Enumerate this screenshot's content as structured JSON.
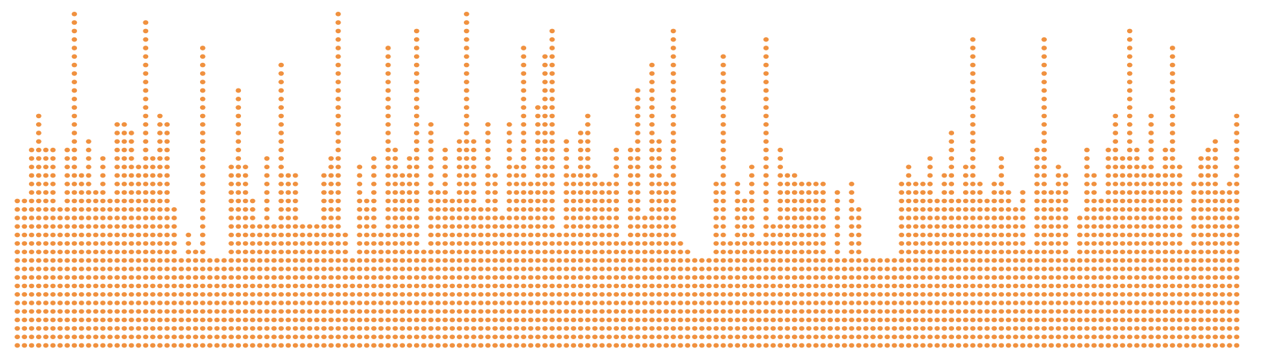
{
  "chart_data": {
    "type": "bar",
    "style": "dot-stack",
    "dot_color": "#f0913f",
    "background_color": "#ffffff",
    "values": [
      18,
      18,
      24,
      28,
      24,
      24,
      17,
      24,
      40,
      21,
      25,
      19,
      23,
      18,
      27,
      27,
      26,
      22,
      39,
      23,
      28,
      27,
      17,
      11,
      14,
      12,
      36,
      11,
      11,
      11,
      22,
      31,
      22,
      18,
      15,
      23,
      15,
      34,
      21,
      21,
      15,
      15,
      15,
      21,
      23,
      40,
      14,
      11,
      22,
      18,
      23,
      14,
      36,
      24,
      21,
      23,
      38,
      12,
      27,
      19,
      24,
      18,
      25,
      40,
      25,
      17,
      27,
      21,
      16,
      27,
      22,
      36,
      20,
      29,
      35,
      38,
      14,
      25,
      21,
      26,
      28,
      21,
      20,
      20,
      24,
      13,
      24,
      31,
      16,
      34,
      25,
      20,
      38,
      13,
      12,
      11,
      11,
      11,
      20,
      35,
      13,
      20,
      18,
      22,
      13,
      37,
      15,
      24,
      21,
      21,
      20,
      20,
      20,
      20,
      11,
      19,
      11,
      20,
      17,
      11,
      11,
      11,
      11,
      11,
      20,
      22,
      20,
      20,
      23,
      18,
      21,
      26,
      18,
      22,
      37,
      20,
      18,
      20,
      23,
      19,
      17,
      19,
      12,
      24,
      37,
      19,
      22,
      21,
      11,
      16,
      24,
      21,
      18,
      24,
      28,
      23,
      38,
      24,
      22,
      28,
      21,
      24,
      36,
      22,
      12,
      20,
      23,
      24,
      25,
      19,
      20,
      28
    ]
  }
}
